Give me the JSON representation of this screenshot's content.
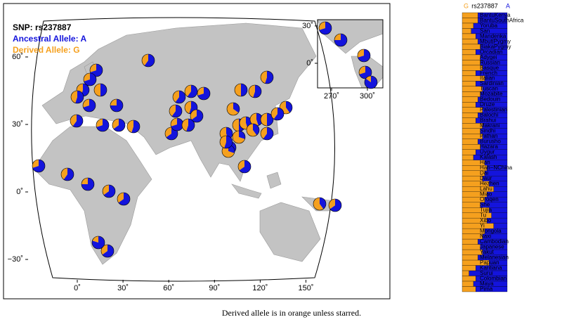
{
  "map": {
    "title": "SNP: rs237887",
    "ancestral": "Ancestral Allele: A",
    "derived": "Derived Allele: G",
    "xticks": [
      {
        "value": 0,
        "label": "0˚"
      },
      {
        "value": 30,
        "label": "30˚"
      },
      {
        "value": 60,
        "label": "60˚"
      },
      {
        "value": 90,
        "label": "90˚"
      },
      {
        "value": 120,
        "label": "120˚"
      },
      {
        "value": 150,
        "label": "150˚"
      }
    ],
    "yticks": [
      {
        "value": 60,
        "label": "60˚"
      },
      {
        "value": 30,
        "label": "30˚"
      },
      {
        "value": 0,
        "label": "0˚"
      },
      {
        "value": -30,
        "label": "−30˚"
      }
    ],
    "inset_xticks": [
      {
        "value": 270,
        "label": "270˚"
      },
      {
        "value": 300,
        "label": "300˚"
      }
    ],
    "inset_yticks": [
      {
        "value": 30,
        "label": "30˚"
      },
      {
        "value": 0,
        "label": "0˚"
      }
    ]
  },
  "chart_data": {
    "type": "bar",
    "title": "rs237887",
    "xlim": [
      0,
      1
    ],
    "categories": [
      "BantuKenya",
      "BantuSouthAfrica",
      "Yoruba",
      "San",
      "Mandenka",
      "MbutiPygmy",
      "BiakaPygmy",
      "Orcadian",
      "Adygei",
      "Russian",
      "Basque",
      "French",
      "Italian",
      "Sardinian",
      "Tuscan",
      "Mozabite",
      "Bedouin",
      "Druze",
      "Palestinian",
      "Balochi",
      "Brahui",
      "Makrani",
      "Sindhi",
      "Pathan",
      "Burusho",
      "Hazara",
      "Uygur",
      "Kalash",
      "Han",
      "Han−NChina",
      "Dai",
      "Daur",
      "Hezhen",
      "Lahu",
      "Miao",
      "Oroqen",
      "She",
      "Tujia",
      "Tu",
      "Xibo",
      "Yi",
      "Mongola",
      "Naxi",
      "Cambodian",
      "Japanese",
      "Yakut",
      "Melanesian",
      "Papuan",
      "Karitiana",
      "Surui",
      "Colombian",
      "Maya",
      "Pima"
    ],
    "series": [
      {
        "name": "G",
        "color": "#f5a01e",
        "values": [
          0.35,
          0.35,
          0.25,
          0.2,
          0.3,
          0.35,
          0.4,
          0.3,
          0.4,
          0.4,
          0.45,
          0.3,
          0.5,
          0.3,
          0.45,
          0.4,
          0.35,
          0.3,
          0.45,
          0.35,
          0.3,
          0.45,
          0.4,
          0.45,
          0.35,
          0.4,
          0.3,
          0.25,
          0.5,
          0.55,
          0.5,
          0.45,
          0.6,
          0.7,
          0.55,
          0.5,
          0.4,
          0.6,
          0.65,
          0.55,
          0.7,
          0.5,
          0.45,
          0.35,
          0.4,
          0.45,
          0.35,
          0.6,
          0.3,
          0.15,
          0.3,
          0.25,
          0.3
        ]
      },
      {
        "name": "A",
        "color": "#1414dc",
        "values": [
          0.65,
          0.65,
          0.75,
          0.8,
          0.7,
          0.65,
          0.6,
          0.7,
          0.6,
          0.6,
          0.55,
          0.7,
          0.5,
          0.7,
          0.55,
          0.6,
          0.65,
          0.7,
          0.55,
          0.65,
          0.7,
          0.55,
          0.6,
          0.55,
          0.65,
          0.6,
          0.7,
          0.75,
          0.5,
          0.45,
          0.5,
          0.55,
          0.4,
          0.3,
          0.45,
          0.5,
          0.6,
          0.4,
          0.35,
          0.45,
          0.3,
          0.5,
          0.55,
          0.65,
          0.6,
          0.55,
          0.65,
          0.4,
          0.7,
          0.85,
          0.7,
          0.75,
          0.7
        ]
      }
    ]
  },
  "caption": "Derived allele is in orange unless starred."
}
